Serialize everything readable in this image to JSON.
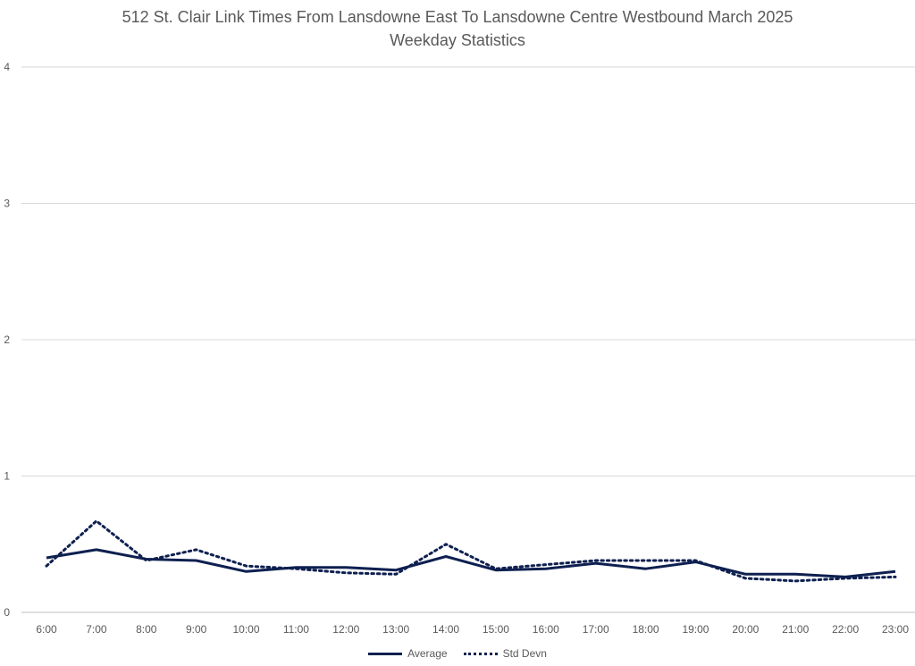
{
  "chart_data": {
    "type": "line",
    "title": "512 St. Clair Link Times From Lansdowne East To Lansdowne Centre Westbound March 2025",
    "subtitle": "Weekday Statistics",
    "xlabel": "",
    "ylabel": "",
    "ylim": [
      0,
      4
    ],
    "yticks": [
      "0",
      "1",
      "2",
      "3",
      "4"
    ],
    "grid": true,
    "legend_position": "bottom",
    "categories": [
      "6:00",
      "7:00",
      "8:00",
      "9:00",
      "10:00",
      "11:00",
      "12:00",
      "13:00",
      "14:00",
      "15:00",
      "16:00",
      "17:00",
      "18:00",
      "19:00",
      "20:00",
      "21:00",
      "22:00",
      "23:00"
    ],
    "series": [
      {
        "name": "Average",
        "style": "solid",
        "color": "#0e2050",
        "values": [
          0.4,
          0.46,
          0.39,
          0.38,
          0.3,
          0.33,
          0.33,
          0.31,
          0.41,
          0.31,
          0.32,
          0.36,
          0.32,
          0.37,
          0.28,
          0.28,
          0.26,
          0.3
        ]
      },
      {
        "name": "Std Devn",
        "style": "dotted",
        "color": "#0e2050",
        "values": [
          0.34,
          0.67,
          0.38,
          0.46,
          0.34,
          0.32,
          0.29,
          0.28,
          0.5,
          0.32,
          0.35,
          0.38,
          0.38,
          0.38,
          0.25,
          0.23,
          0.25,
          0.26
        ]
      }
    ]
  }
}
